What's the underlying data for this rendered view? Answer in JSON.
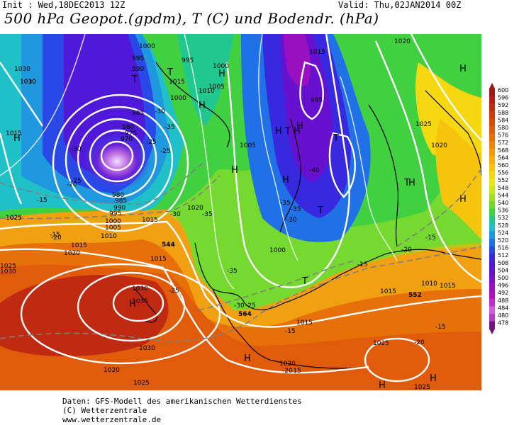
{
  "header": {
    "init": "Init : Wed,18DEC2013 12Z",
    "valid": "Valid: Thu,02JAN2014 00Z",
    "title": "500 hPa Geopot.(gpdm), T (C) und Bodendr. (hPa)"
  },
  "legend": {
    "levels": [
      "600",
      "596",
      "592",
      "588",
      "584",
      "580",
      "576",
      "572",
      "568",
      "564",
      "560",
      "556",
      "552",
      "548",
      "544",
      "540",
      "536",
      "532",
      "528",
      "524",
      "520",
      "516",
      "512",
      "508",
      "504",
      "500",
      "496",
      "492",
      "488",
      "484",
      "480",
      "478"
    ],
    "colors": [
      "#a01818",
      "#b02018",
      "#c02a10",
      "#d03810",
      "#d84a0c",
      "#e05c0a",
      "#e87008",
      "#ee8408",
      "#f29a08",
      "#f4b00a",
      "#f6c40c",
      "#f6d810",
      "#e8e810",
      "#c8e818",
      "#a0e020",
      "#70d828",
      "#40d040",
      "#20c890",
      "#20c0c8",
      "#2098e0",
      "#2070e8",
      "#2848e8",
      "#3828e0",
      "#5018d8",
      "#6810d0",
      "#8010c8",
      "#9810c0",
      "#b010b8",
      "#c030c8",
      "#d060d8",
      "#b040c0",
      "#701880"
    ]
  },
  "map": {
    "high_labels": [
      "H",
      "H",
      "H",
      "H",
      "H",
      "H",
      "H",
      "H",
      "H",
      "H",
      "H",
      "H",
      "H",
      "H",
      "H"
    ],
    "low_labels": [
      "T",
      "T",
      "T",
      "T",
      "T",
      "T",
      "T"
    ],
    "isobar_labels": [
      "1030",
      "1030",
      "1015",
      "1025",
      "1000",
      "995",
      "990",
      "985",
      "980",
      "975",
      "970",
      "980",
      "985",
      "990",
      "995",
      "1000",
      "1005",
      "1010",
      "1015",
      "1020",
      "1025",
      "1030",
      "1025",
      "1010",
      "1015",
      "1020",
      "1015",
      "1030",
      "1035",
      "1030",
      "1025",
      "1020",
      "1015",
      "1010",
      "1005",
      "1000",
      "1000",
      "995",
      "995",
      "1000",
      "1015",
      "1025",
      "1020",
      "1015",
      "1010",
      "1020",
      "1015",
      "1025",
      "1025",
      "1015",
      "1020",
      "1005"
    ],
    "temp_labels": [
      "-30",
      "-35",
      "-25",
      "-30",
      "-25",
      "-20",
      "-15",
      "-15",
      "-20",
      "-25",
      "-30",
      "-35",
      "-40",
      "-35",
      "-30",
      "-35",
      "-25",
      "-20",
      "-15",
      "-15",
      "-20",
      "-15",
      "-15",
      "-15",
      "-20",
      "-25",
      "-30",
      "-35"
    ],
    "geopot_labels": [
      "564",
      "552",
      "544"
    ]
  },
  "footer": {
    "line1": "Daten: GFS-Modell des amerikanischen Wetterdienstes",
    "line2": "(C) Wetterzentrale",
    "line3": "www.wetterzentrale.de"
  }
}
